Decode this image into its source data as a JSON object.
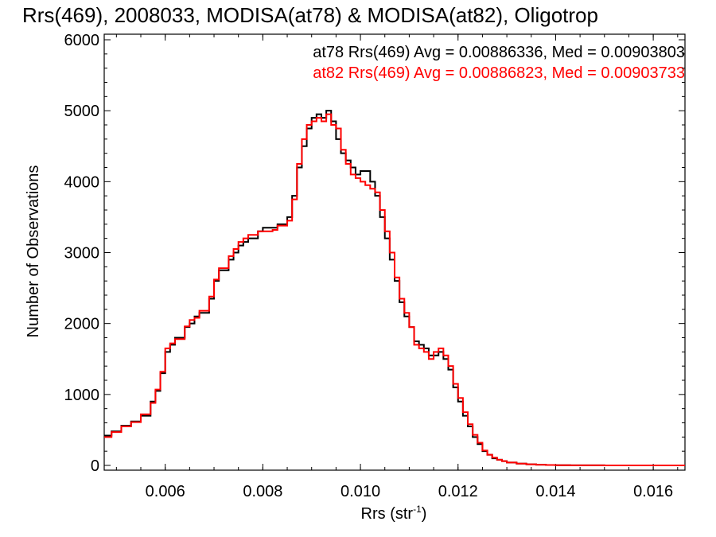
{
  "chart_data": {
    "type": "line",
    "title": "Rrs(469), 2008033, MODISA(at78) & MODISA(at82), Oligotrop",
    "xlabel": "Rrs (str",
    "xlabel_sup": "-1",
    "xlabel_tail": ")",
    "ylabel": "Number of Observations",
    "xlim": [
      0.00475,
      0.01665
    ],
    "ylim": [
      0,
      6000
    ],
    "x_ticks": [
      0.006,
      0.008,
      0.01,
      0.012,
      0.014,
      0.016
    ],
    "x_tick_labels": [
      "0.006",
      "0.008",
      "0.010",
      "0.012",
      "0.014",
      "0.016"
    ],
    "y_ticks": [
      0,
      1000,
      2000,
      3000,
      4000,
      5000,
      6000
    ],
    "y_tick_labels": [
      "0",
      "1000",
      "2000",
      "3000",
      "4000",
      "5000",
      "6000"
    ],
    "annotations": [
      {
        "text": "at78 Rrs(469) Avg = 0.00886336, Med = 0.00903803",
        "color": "#000000"
      },
      {
        "text": "at82 Rrs(469) Avg = 0.00886823, Med = 0.00903733",
        "color": "#ff0000"
      }
    ],
    "series": [
      {
        "name": "at78",
        "color": "#000000",
        "x": [
          0.00475,
          0.0049,
          0.0051,
          0.0053,
          0.0055,
          0.0057,
          0.0058,
          0.0059,
          0.006,
          0.0061,
          0.0062,
          0.0064,
          0.0065,
          0.0066,
          0.0067,
          0.0069,
          0.007,
          0.0071,
          0.0073,
          0.0074,
          0.0075,
          0.0076,
          0.0077,
          0.0079,
          0.008,
          0.0082,
          0.0083,
          0.0085,
          0.0086,
          0.0087,
          0.0088,
          0.0089,
          0.009,
          0.0091,
          0.0092,
          0.0093,
          0.0094,
          0.0095,
          0.0096,
          0.0097,
          0.0098,
          0.0099,
          0.01,
          0.0101,
          0.0102,
          0.0103,
          0.0104,
          0.0105,
          0.0106,
          0.0107,
          0.0108,
          0.0109,
          0.011,
          0.0111,
          0.0112,
          0.0113,
          0.0114,
          0.0115,
          0.0116,
          0.0117,
          0.0118,
          0.0119,
          0.012,
          0.0121,
          0.0122,
          0.0123,
          0.0124,
          0.0125,
          0.0126,
          0.0127,
          0.0128,
          0.0129,
          0.013,
          0.0132,
          0.0134,
          0.0136,
          0.0138,
          0.014,
          0.0143,
          0.0146,
          0.015,
          0.0155,
          0.0166
        ],
        "values": [
          420,
          480,
          560,
          620,
          700,
          900,
          1050,
          1300,
          1600,
          1700,
          1800,
          1950,
          2000,
          2100,
          2150,
          2350,
          2600,
          2750,
          2900,
          3000,
          3100,
          3150,
          3200,
          3300,
          3350,
          3350,
          3400,
          3500,
          3800,
          4200,
          4500,
          4750,
          4900,
          4950,
          4900,
          5000,
          4850,
          4600,
          4400,
          4300,
          4200,
          4100,
          4150,
          4150,
          4000,
          3800,
          3500,
          3200,
          2900,
          2600,
          2300,
          2100,
          1950,
          1750,
          1700,
          1650,
          1550,
          1550,
          1600,
          1500,
          1350,
          1100,
          900,
          700,
          550,
          400,
          300,
          200,
          150,
          100,
          80,
          60,
          40,
          25,
          15,
          10,
          5,
          3,
          2,
          1,
          0,
          0,
          0
        ]
      },
      {
        "name": "at82",
        "color": "#ff0000",
        "x": [
          0.00475,
          0.0049,
          0.0051,
          0.0053,
          0.0055,
          0.0057,
          0.0058,
          0.0059,
          0.006,
          0.0061,
          0.0062,
          0.0064,
          0.0065,
          0.0066,
          0.0067,
          0.0069,
          0.007,
          0.0071,
          0.0073,
          0.0074,
          0.0075,
          0.0076,
          0.0077,
          0.0079,
          0.008,
          0.0082,
          0.0083,
          0.0085,
          0.0086,
          0.0087,
          0.0088,
          0.0089,
          0.009,
          0.0091,
          0.0092,
          0.0093,
          0.0094,
          0.0095,
          0.0096,
          0.0097,
          0.0098,
          0.0099,
          0.01,
          0.0101,
          0.0102,
          0.0103,
          0.0104,
          0.0105,
          0.0106,
          0.0107,
          0.0108,
          0.0109,
          0.011,
          0.0111,
          0.0112,
          0.0113,
          0.0114,
          0.0115,
          0.0116,
          0.0117,
          0.0118,
          0.0119,
          0.012,
          0.0121,
          0.0122,
          0.0123,
          0.0124,
          0.0125,
          0.0126,
          0.0127,
          0.0128,
          0.0129,
          0.013,
          0.0132,
          0.0134,
          0.0136,
          0.0138,
          0.014,
          0.0143,
          0.0146,
          0.015,
          0.0155,
          0.0166
        ],
        "values": [
          400,
          470,
          550,
          610,
          720,
          880,
          1070,
          1320,
          1650,
          1720,
          1780,
          1960,
          2050,
          2080,
          2180,
          2380,
          2620,
          2780,
          2950,
          3050,
          3150,
          3200,
          3250,
          3300,
          3300,
          3320,
          3380,
          3450,
          3750,
          4250,
          4600,
          4800,
          4850,
          4900,
          4850,
          4950,
          4800,
          4750,
          4450,
          4250,
          4100,
          4050,
          4000,
          3950,
          3900,
          3850,
          3600,
          3300,
          3000,
          2650,
          2350,
          2150,
          1950,
          1700,
          1650,
          1600,
          1500,
          1600,
          1650,
          1550,
          1400,
          1150,
          950,
          750,
          580,
          430,
          320,
          210,
          150,
          110,
          80,
          60,
          40,
          25,
          15,
          10,
          5,
          3,
          2,
          1,
          0,
          0,
          0
        ]
      }
    ]
  }
}
